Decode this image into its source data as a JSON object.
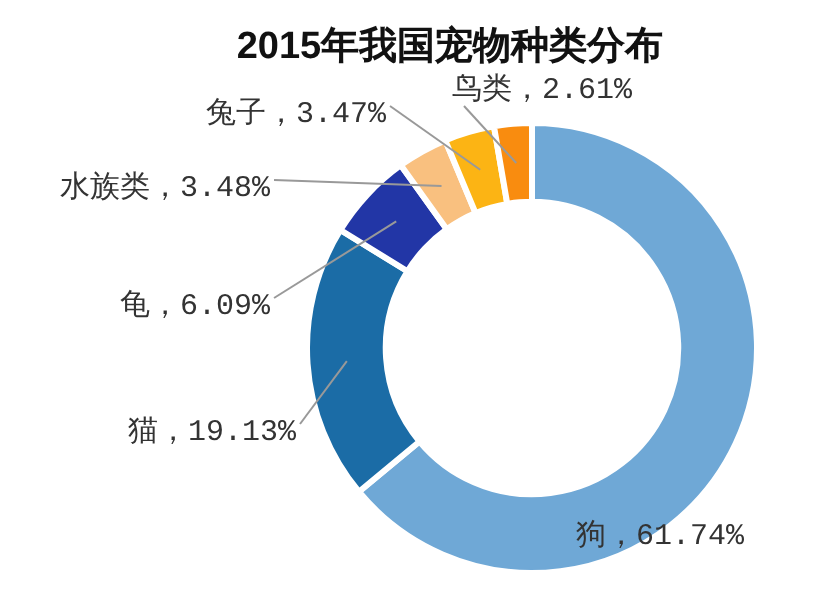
{
  "chart_data": {
    "type": "donut",
    "title": "2015年我国宠物种类分布",
    "categories": [
      "狗",
      "猫",
      "龟",
      "水族类",
      "兔子",
      "鸟类"
    ],
    "values": [
      61.74,
      19.13,
      6.09,
      3.48,
      3.47,
      2.61
    ],
    "value_labels": [
      "61.74%",
      "19.13%",
      "6.09%",
      "3.48%",
      "3.47%",
      "2.61%"
    ],
    "colors": [
      "#6fa8d6",
      "#1b6ca6",
      "#2236a6",
      "#f9c07f",
      "#fcb414",
      "#f98c0f"
    ],
    "legend": false
  }
}
